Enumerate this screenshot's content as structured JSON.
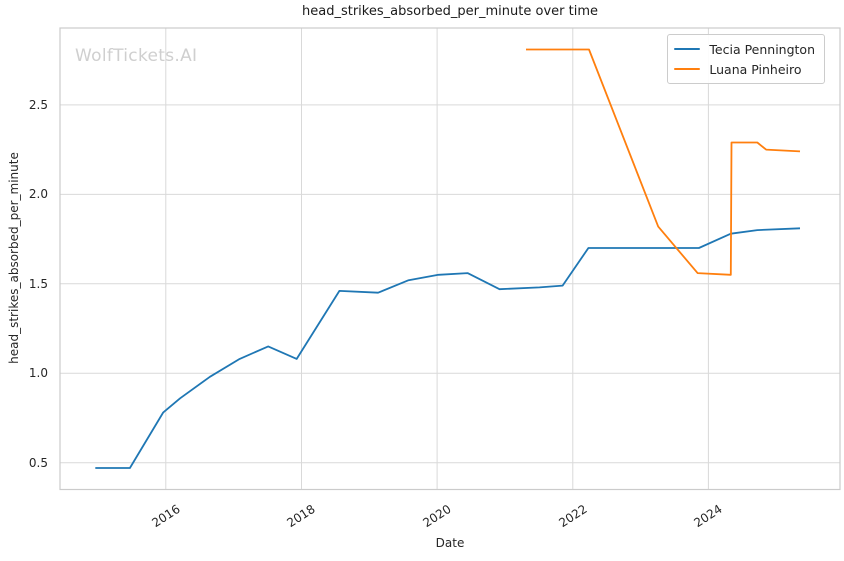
{
  "watermark": "WolfTickets.AI",
  "chart_data": {
    "type": "line",
    "title": "head_strikes_absorbed_per_minute over time",
    "xlabel": "Date",
    "ylabel": "head_strikes_absorbed_per_minute",
    "xlim": [
      2014.44,
      2025.94
    ],
    "ylim": [
      0.35,
      2.93
    ],
    "x_ticks": [
      2016,
      2018,
      2020,
      2022,
      2024
    ],
    "x_tick_labels": [
      "2016",
      "2018",
      "2020",
      "2022",
      "2024"
    ],
    "y_ticks": [
      0.5,
      1.0,
      1.5,
      2.0,
      2.5
    ],
    "y_tick_labels": [
      "0.5",
      "1.0",
      "1.5",
      "2.0",
      "2.5"
    ],
    "grid": true,
    "grid_color": "#d9d9d9",
    "spine_color": "#cbcbcb",
    "legend_position": "upper right",
    "series": [
      {
        "name": "Tecia Pennington",
        "color": "#1f77b4",
        "points": [
          [
            2014.96,
            0.47
          ],
          [
            2015.47,
            0.47
          ],
          [
            2015.96,
            0.78
          ],
          [
            2016.21,
            0.86
          ],
          [
            2016.65,
            0.98
          ],
          [
            2017.09,
            1.08
          ],
          [
            2017.51,
            1.15
          ],
          [
            2017.93,
            1.08
          ],
          [
            2018.56,
            1.46
          ],
          [
            2019.13,
            1.45
          ],
          [
            2019.58,
            1.52
          ],
          [
            2020.02,
            1.55
          ],
          [
            2020.45,
            1.56
          ],
          [
            2020.92,
            1.47
          ],
          [
            2021.51,
            1.48
          ],
          [
            2021.85,
            1.49
          ],
          [
            2022.23,
            1.7
          ],
          [
            2023.86,
            1.7
          ],
          [
            2024.33,
            1.78
          ],
          [
            2024.72,
            1.8
          ],
          [
            2025.35,
            1.81
          ]
        ]
      },
      {
        "name": "Luana Pinheiro",
        "color": "#ff7f0e",
        "points": [
          [
            2021.31,
            2.81
          ],
          [
            2022.24,
            2.81
          ],
          [
            2023.26,
            1.82
          ],
          [
            2023.84,
            1.56
          ],
          [
            2024.33,
            1.55
          ],
          [
            2024.34,
            2.29
          ],
          [
            2024.72,
            2.29
          ],
          [
            2024.85,
            2.25
          ],
          [
            2025.35,
            2.24
          ]
        ]
      }
    ]
  }
}
